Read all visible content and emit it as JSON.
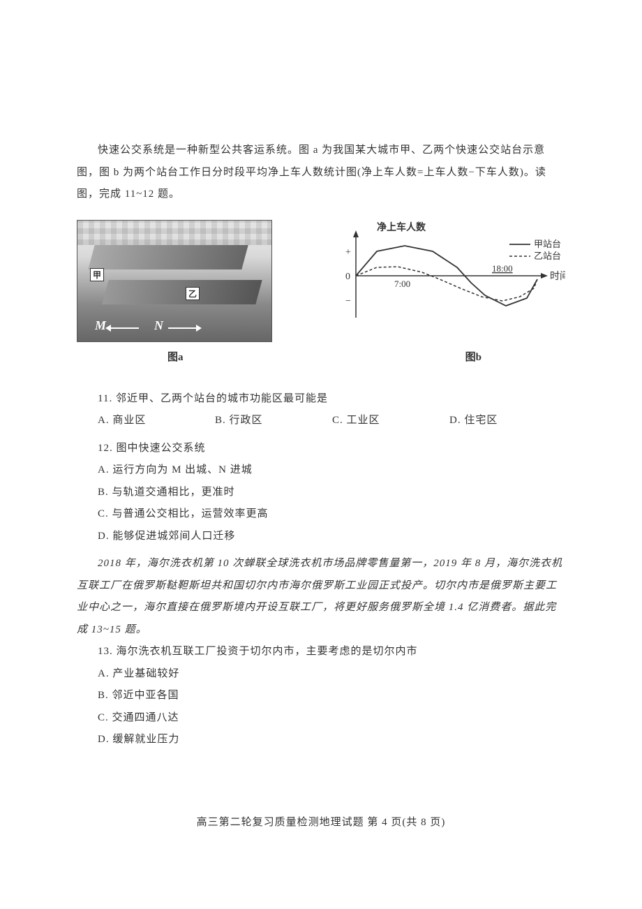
{
  "intro": "快速公交系统是一种新型公共客运系统。图 a 为我国某大城市甲、乙两个快速公交站台示意图，图 b 为两个站台工作日分时段平均净上车人数统计图(净上车人数=上车人数−下车人数)。读图，完成 11~12 题。",
  "figure_a": {
    "label": "图a",
    "markers": {
      "jia": "甲",
      "yi": "乙",
      "m": "M",
      "n": "N"
    }
  },
  "figure_b": {
    "label": "图b",
    "y_axis_title": "净上车人数",
    "x_axis_title": "时间",
    "y_plus": "+",
    "y_zero": "0",
    "y_minus": "−",
    "x_ticks": [
      "7:00",
      "18:00"
    ],
    "legend": {
      "jia": "甲站台",
      "yi": "乙站台"
    },
    "colors": {
      "axis": "#333333",
      "jia_line": "#333333",
      "yi_line": "#333333",
      "text": "#333333"
    },
    "series": {
      "jia": {
        "style": "solid",
        "points": [
          [
            0,
            0
          ],
          [
            30,
            35
          ],
          [
            70,
            43
          ],
          [
            110,
            35
          ],
          [
            145,
            12
          ],
          [
            165,
            -10
          ],
          [
            185,
            -28
          ],
          [
            215,
            -43
          ],
          [
            245,
            -32
          ],
          [
            260,
            -5
          ]
        ]
      },
      "yi": {
        "style": "dashed",
        "points": [
          [
            0,
            0
          ],
          [
            30,
            12
          ],
          [
            60,
            13
          ],
          [
            95,
            5
          ],
          [
            120,
            -5
          ],
          [
            150,
            -18
          ],
          [
            180,
            -30
          ],
          [
            210,
            -36
          ],
          [
            235,
            -30
          ],
          [
            255,
            -18
          ],
          [
            260,
            -5
          ]
        ]
      }
    }
  },
  "q11": {
    "stem": "11. 邻近甲、乙两个站台的城市功能区最可能是",
    "options": {
      "A": "A. 商业区",
      "B": "B. 行政区",
      "C": "C. 工业区",
      "D": "D. 住宅区"
    }
  },
  "q12": {
    "stem": "12. 图中快速公交系统",
    "options": {
      "A": "A. 运行方向为 M 出城、N 进城",
      "B": "B. 与轨道交通相比，更准时",
      "C": "C. 与普通公交相比，运营效率更高",
      "D": "D. 能够促进城郊间人口迁移"
    }
  },
  "passage2": "2018 年，海尔洗衣机第 10 次蝉联全球洗衣机市场品牌零售量第一，2019 年 8 月，海尔洗衣机互联工厂在俄罗斯鞑靼斯坦共和国切尔内市海尔俄罗斯工业园正式投产。切尔内市是俄罗斯主要工业中心之一，海尔直接在俄罗斯境内开设互联工厂，将更好服务俄罗斯全境 1.4 亿消费者。据此完成 13~15 题。",
  "q13": {
    "stem": "13. 海尔洗衣机互联工厂投资于切尔内市，主要考虑的是切尔内市",
    "options": {
      "A": "A. 产业基础较好",
      "B": "B. 邻近中亚各国",
      "C": "C. 交通四通八达",
      "D": "D. 缓解就业压力"
    }
  },
  "footer": "高三第二轮复习质量检测地理试题 第 4 页(共 8 页)"
}
